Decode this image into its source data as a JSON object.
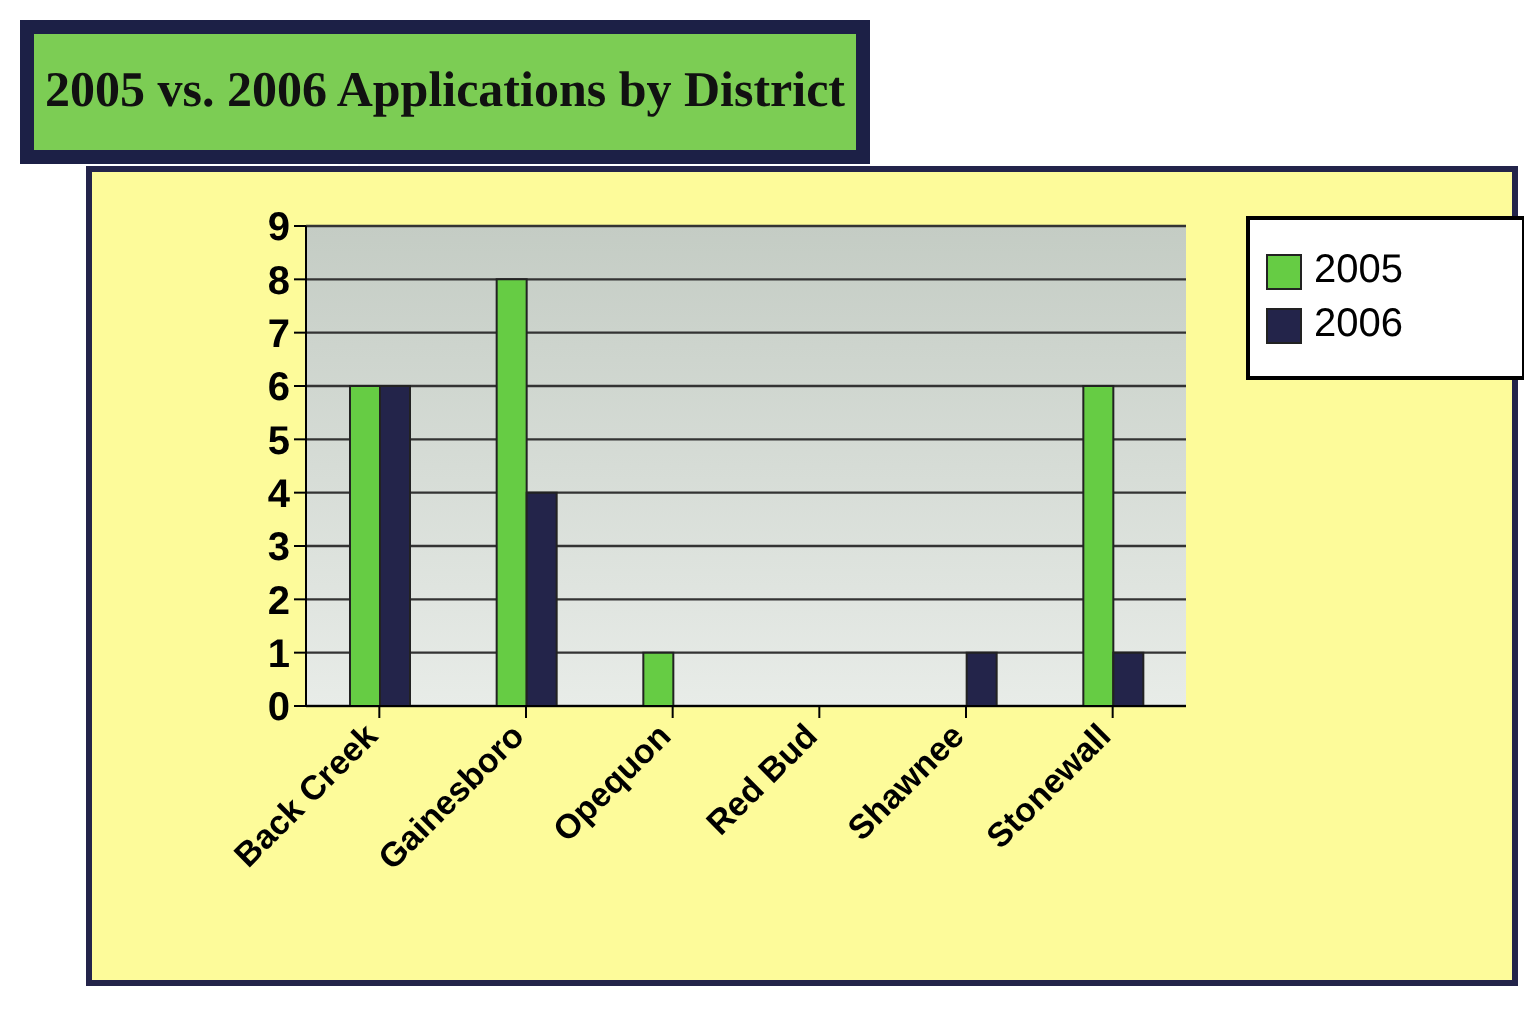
{
  "chart_data": {
    "type": "bar",
    "title": "2005 vs. 2006 Applications by District",
    "categories": [
      "Back Creek",
      "Gainesboro",
      "Opequon",
      "Red Bud",
      "Shawnee",
      "Stonewall"
    ],
    "series": [
      {
        "name": "2005",
        "color": "#66cc44",
        "values": [
          6,
          8,
          1,
          0,
          0,
          6
        ]
      },
      {
        "name": "2006",
        "color": "#23244a",
        "values": [
          6,
          4,
          0,
          0,
          1,
          1
        ]
      }
    ],
    "ylim": [
      0,
      9
    ],
    "yticks": [
      0,
      1,
      2,
      3,
      4,
      5,
      6,
      7,
      8,
      9
    ],
    "grid": "y",
    "legend": "top right"
  }
}
